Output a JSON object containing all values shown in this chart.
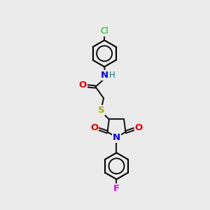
{
  "background_color": "#ebebeb",
  "bond_color": "#1a1a1a",
  "atom_colors": {
    "Cl": "#00bb00",
    "N": "#0000ee",
    "H": "#008888",
    "O": "#ee0000",
    "S": "#aaaa00",
    "F": "#ee00ee"
  },
  "figsize": [
    3.0,
    3.0
  ],
  "dpi": 100
}
